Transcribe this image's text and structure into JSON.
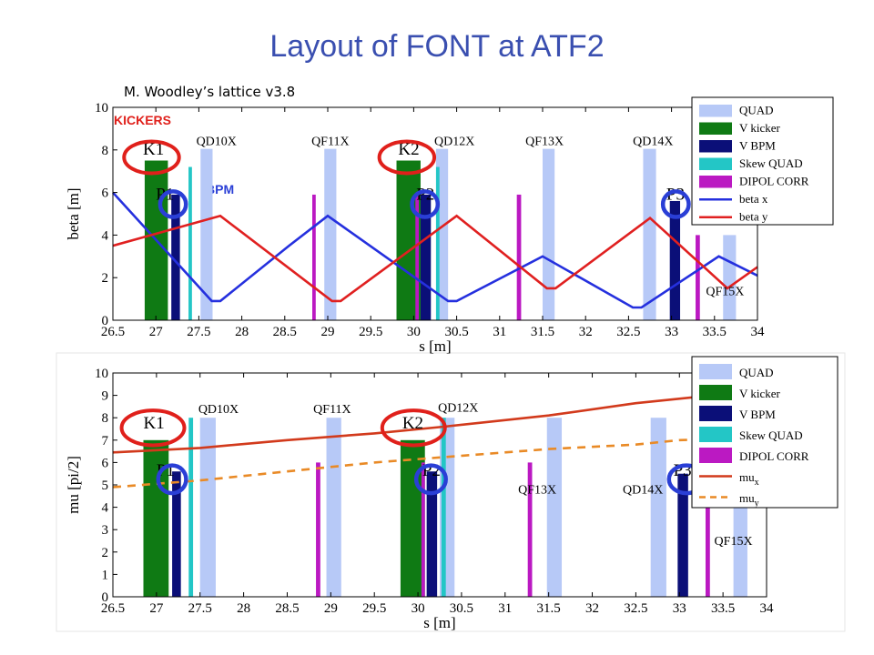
{
  "title": "Layout of FONT at ATF2",
  "annotations": {
    "lattice": "M. Woodley’s lattice v3.8",
    "kickers": "KICKERS",
    "bpm": "BPM"
  },
  "colors": {
    "quad": "#b7c9f7",
    "v_kicker": "#0f7a14",
    "v_bpm": "#0b0f78",
    "skew_quad": "#23c6c6",
    "dipol_corr": "#bb19c2",
    "beta_x": "#2530de",
    "beta_y": "#e02020",
    "mu_x": "#d23a1c",
    "mu_y": "#e98a26",
    "circle_red": "#e0201b",
    "circle_blue": "#2a3fd6",
    "title": "#3a4fb0"
  },
  "chart_data": [
    {
      "type": "line",
      "xlabel": "s [m]",
      "ylabel": "beta [m]",
      "xlim": [
        26.5,
        34
      ],
      "ylim": [
        0,
        10
      ],
      "xticks": [
        "26.5",
        "27",
        "27.5",
        "28",
        "28.5",
        "29",
        "29.5",
        "30",
        "30.5",
        "31",
        "31.5",
        "32",
        "32.5",
        "33",
        "33.5",
        "34"
      ],
      "yticks": [
        "0",
        "2",
        "4",
        "6",
        "8",
        "10"
      ],
      "legend": [
        "QUAD",
        "V kicker",
        "V BPM",
        "Skew QUAD",
        "DIPOL CORR",
        "beta x",
        "beta y"
      ],
      "legend_position": "top-right",
      "magnets": [
        {
          "kind": "quad",
          "x0": 27.52,
          "x1": 27.66,
          "h": 8.05
        },
        {
          "kind": "quad",
          "x0": 28.96,
          "x1": 29.1,
          "h": 8.05
        },
        {
          "kind": "quad",
          "x0": 30.26,
          "x1": 30.4,
          "h": 8.05
        },
        {
          "kind": "quad",
          "x0": 31.5,
          "x1": 31.64,
          "h": 8.05
        },
        {
          "kind": "quad",
          "x0": 32.67,
          "x1": 32.82,
          "h": 8.05
        },
        {
          "kind": "quad",
          "x0": 33.6,
          "x1": 33.75,
          "h": 4.0
        },
        {
          "kind": "v_kicker",
          "x0": 26.87,
          "x1": 27.14,
          "h": 7.5
        },
        {
          "kind": "v_kicker",
          "x0": 29.8,
          "x1": 30.08,
          "h": 7.5
        },
        {
          "kind": "v_bpm",
          "x0": 27.18,
          "x1": 27.28,
          "h": 5.9
        },
        {
          "kind": "v_bpm",
          "x0": 30.08,
          "x1": 30.2,
          "h": 5.9
        },
        {
          "kind": "v_bpm",
          "x0": 32.98,
          "x1": 33.1,
          "h": 5.6
        },
        {
          "kind": "skew_quad",
          "x0": 27.38,
          "x1": 27.42,
          "h": 7.2
        },
        {
          "kind": "skew_quad",
          "x0": 30.26,
          "x1": 30.3,
          "h": 7.2
        },
        {
          "kind": "dipol_corr",
          "x0": 28.82,
          "x1": 28.86,
          "h": 5.9
        },
        {
          "kind": "dipol_corr",
          "x0": 30.02,
          "x1": 30.06,
          "h": 5.9
        },
        {
          "kind": "dipol_corr",
          "x0": 31.2,
          "x1": 31.25,
          "h": 5.9
        },
        {
          "kind": "dipol_corr",
          "x0": 33.28,
          "x1": 33.33,
          "h": 4.0
        }
      ],
      "magnet_labels": [
        {
          "text": "K1",
          "x": 26.85,
          "y": 7.6
        },
        {
          "text": "K2",
          "x": 29.82,
          "y": 7.6
        },
        {
          "text": "P1",
          "x": 27.0,
          "y": 5.5
        },
        {
          "text": "P2",
          "x": 30.03,
          "y": 5.5
        },
        {
          "text": "P3",
          "x": 32.94,
          "y": 5.5
        },
        {
          "text": "QD10X",
          "x": 27.47,
          "y": 8.05
        },
        {
          "text": "QF11X",
          "x": 28.81,
          "y": 8.05
        },
        {
          "text": "QD12X",
          "x": 30.24,
          "y": 8.05
        },
        {
          "text": "QF13X",
          "x": 31.3,
          "y": 8.05
        },
        {
          "text": "QD14X",
          "x": 32.55,
          "y": 8.05
        },
        {
          "text": "QF15X",
          "x": 33.4,
          "y": 1.0
        }
      ],
      "circles": [
        {
          "color": "red",
          "x": 26.95,
          "y": 7.65,
          "rx": 0.32,
          "ry": 0.75
        },
        {
          "color": "red",
          "x": 29.92,
          "y": 7.65,
          "rx": 0.32,
          "ry": 0.75
        },
        {
          "color": "blue",
          "x": 27.2,
          "y": 5.45,
          "rx": 0.15,
          "ry": 0.6
        },
        {
          "color": "blue",
          "x": 30.13,
          "y": 5.45,
          "rx": 0.15,
          "ry": 0.6
        },
        {
          "color": "blue",
          "x": 33.05,
          "y": 5.45,
          "rx": 0.15,
          "ry": 0.6
        }
      ],
      "series": [
        {
          "name": "beta x",
          "color_key": "beta_x",
          "x": [
            26.5,
            27.65,
            27.75,
            28.55,
            29.0,
            30.4,
            30.5,
            31.5,
            32.55,
            32.65,
            33.55,
            34.0
          ],
          "y": [
            6.0,
            0.9,
            0.9,
            3.5,
            4.9,
            0.9,
            0.9,
            3.0,
            0.6,
            0.6,
            3.0,
            2.1
          ]
        },
        {
          "name": "beta y",
          "color_key": "beta_y",
          "x": [
            26.5,
            27.75,
            29.05,
            29.15,
            30.5,
            31.55,
            31.65,
            32.75,
            33.65,
            34.0
          ],
          "y": [
            3.5,
            4.9,
            0.9,
            0.9,
            4.9,
            1.5,
            1.5,
            4.8,
            1.5,
            2.5
          ]
        }
      ]
    },
    {
      "type": "line",
      "xlabel": "s [m]",
      "ylabel": "mu [pi/2]",
      "xlim": [
        26.5,
        34
      ],
      "ylim": [
        0,
        10
      ],
      "xticks": [
        "26.5",
        "27",
        "27.5",
        "28",
        "28.5",
        "29",
        "29.5",
        "30",
        "30.5",
        "31",
        "31.5",
        "32",
        "32.5",
        "33",
        "33.5",
        "34"
      ],
      "yticks": [
        "0",
        "1",
        "2",
        "3",
        "4",
        "5",
        "6",
        "7",
        "8",
        "9",
        "10"
      ],
      "legend": [
        "QUAD",
        "V kicker",
        "V BPM",
        "Skew QUAD",
        "DIPOL CORR",
        "mu_x",
        "mu_y"
      ],
      "legend_position": "top-right",
      "magnets": [
        {
          "kind": "quad",
          "x0": 27.5,
          "x1": 27.68,
          "h": 8.0
        },
        {
          "kind": "quad",
          "x0": 28.95,
          "x1": 29.12,
          "h": 8.0
        },
        {
          "kind": "quad",
          "x0": 30.25,
          "x1": 30.42,
          "h": 8.0
        },
        {
          "kind": "quad",
          "x0": 31.48,
          "x1": 31.65,
          "h": 8.0
        },
        {
          "kind": "quad",
          "x0": 32.67,
          "x1": 32.85,
          "h": 8.0
        },
        {
          "kind": "quad",
          "x0": 33.62,
          "x1": 33.78,
          "h": 4.5
        },
        {
          "kind": "v_kicker",
          "x0": 26.85,
          "x1": 27.14,
          "h": 7.0
        },
        {
          "kind": "v_kicker",
          "x0": 29.8,
          "x1": 30.08,
          "h": 7.0
        },
        {
          "kind": "v_bpm",
          "x0": 27.18,
          "x1": 27.28,
          "h": 5.6
        },
        {
          "kind": "v_bpm",
          "x0": 30.1,
          "x1": 30.22,
          "h": 5.6
        },
        {
          "kind": "v_bpm",
          "x0": 32.98,
          "x1": 33.1,
          "h": 5.5
        },
        {
          "kind": "skew_quad",
          "x0": 27.37,
          "x1": 27.42,
          "h": 8.0
        },
        {
          "kind": "skew_quad",
          "x0": 30.27,
          "x1": 30.32,
          "h": 8.0
        },
        {
          "kind": "dipol_corr",
          "x0": 28.83,
          "x1": 28.88,
          "h": 6.0
        },
        {
          "kind": "dipol_corr",
          "x0": 30.04,
          "x1": 30.08,
          "h": 6.0
        },
        {
          "kind": "dipol_corr",
          "x0": 31.26,
          "x1": 31.31,
          "h": 6.0
        },
        {
          "kind": "dipol_corr",
          "x0": 33.3,
          "x1": 33.35,
          "h": 4.0
        }
      ],
      "magnet_labels": [
        {
          "text": "K1",
          "x": 26.85,
          "y": 7.35
        },
        {
          "text": "K2",
          "x": 29.82,
          "y": 7.35
        },
        {
          "text": "P1",
          "x": 27.0,
          "y": 5.25
        },
        {
          "text": "P2",
          "x": 30.05,
          "y": 5.25
        },
        {
          "text": "P3",
          "x": 32.93,
          "y": 5.25
        },
        {
          "text": "QD10X",
          "x": 27.48,
          "y": 8.05
        },
        {
          "text": "QF11X",
          "x": 28.8,
          "y": 8.05
        },
        {
          "text": "QD12X",
          "x": 30.23,
          "y": 8.1
        },
        {
          "text": "QF13X",
          "x": 31.15,
          "y": 4.45
        },
        {
          "text": "QD14X",
          "x": 32.35,
          "y": 4.45
        },
        {
          "text": "QF15X",
          "x": 33.4,
          "y": 2.15
        }
      ],
      "circles": [
        {
          "color": "red",
          "x": 26.96,
          "y": 7.55,
          "rx": 0.36,
          "ry": 0.78
        },
        {
          "color": "red",
          "x": 29.95,
          "y": 7.55,
          "rx": 0.36,
          "ry": 0.78
        },
        {
          "color": "blue",
          "x": 27.18,
          "y": 5.25,
          "rx": 0.16,
          "ry": 0.62
        },
        {
          "color": "blue",
          "x": 30.15,
          "y": 5.25,
          "rx": 0.17,
          "ry": 0.62
        },
        {
          "color": "blue",
          "x": 33.08,
          "y": 5.25,
          "rx": 0.2,
          "ry": 0.62
        }
      ],
      "series": [
        {
          "name": "mu_x",
          "color_key": "mu_x",
          "dash": false,
          "x": [
            26.5,
            27.5,
            28.5,
            29.5,
            30.3,
            31.5,
            32.5,
            33.5,
            34.0
          ],
          "y": [
            6.45,
            6.65,
            7.0,
            7.3,
            7.6,
            8.1,
            8.65,
            9.05,
            9.2
          ]
        },
        {
          "name": "mu_y",
          "color_key": "mu_y",
          "dash": true,
          "x": [
            26.5,
            27.5,
            28.5,
            29.5,
            30.5,
            31.5,
            32.5,
            33.0,
            34.0
          ],
          "y": [
            4.9,
            5.2,
            5.6,
            6.0,
            6.3,
            6.6,
            6.8,
            7.0,
            7.1
          ]
        }
      ]
    }
  ]
}
